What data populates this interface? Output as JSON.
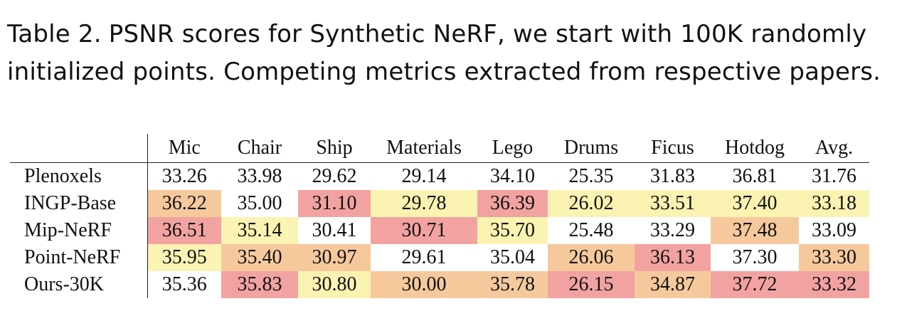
{
  "caption": {
    "label": "Table 2.",
    "text": "PSNR scores for Synthetic NeRF, we start with 100K randomly initialized points. Competing metrics extracted from respective papers."
  },
  "table": {
    "columns": [
      "Mic",
      "Chair",
      "Ship",
      "Materials",
      "Lego",
      "Drums",
      "Ficus",
      "Hotdog",
      "Avg."
    ],
    "rows": [
      {
        "method": "Plenoxels",
        "cells": [
          {
            "value": "33.26",
            "rank": 0
          },
          {
            "value": "33.98",
            "rank": 0
          },
          {
            "value": "29.62",
            "rank": 0
          },
          {
            "value": "29.14",
            "rank": 0
          },
          {
            "value": "34.10",
            "rank": 0
          },
          {
            "value": "25.35",
            "rank": 0
          },
          {
            "value": "31.83",
            "rank": 0
          },
          {
            "value": "36.81",
            "rank": 0
          },
          {
            "value": "31.76",
            "rank": 0
          }
        ]
      },
      {
        "method": "INGP-Base",
        "cells": [
          {
            "value": "36.22",
            "rank": 2
          },
          {
            "value": "35.00",
            "rank": 0
          },
          {
            "value": "31.10",
            "rank": 1
          },
          {
            "value": "29.78",
            "rank": 3
          },
          {
            "value": "36.39",
            "rank": 1
          },
          {
            "value": "26.02",
            "rank": 3
          },
          {
            "value": "33.51",
            "rank": 3
          },
          {
            "value": "37.40",
            "rank": 3
          },
          {
            "value": "33.18",
            "rank": 3
          }
        ]
      },
      {
        "method": "Mip-NeRF",
        "cells": [
          {
            "value": "36.51",
            "rank": 1
          },
          {
            "value": "35.14",
            "rank": 3
          },
          {
            "value": "30.41",
            "rank": 0
          },
          {
            "value": "30.71",
            "rank": 1
          },
          {
            "value": "35.70",
            "rank": 3
          },
          {
            "value": "25.48",
            "rank": 0
          },
          {
            "value": "33.29",
            "rank": 0
          },
          {
            "value": "37.48",
            "rank": 2
          },
          {
            "value": "33.09",
            "rank": 0
          }
        ]
      },
      {
        "method": "Point-NeRF",
        "cells": [
          {
            "value": "35.95",
            "rank": 3
          },
          {
            "value": "35.40",
            "rank": 2
          },
          {
            "value": "30.97",
            "rank": 2
          },
          {
            "value": "29.61",
            "rank": 0
          },
          {
            "value": "35.04",
            "rank": 0
          },
          {
            "value": "26.06",
            "rank": 2
          },
          {
            "value": "36.13",
            "rank": 1
          },
          {
            "value": "37.30",
            "rank": 0
          },
          {
            "value": "33.30",
            "rank": 2
          }
        ]
      },
      {
        "method": "Ours-30K",
        "cells": [
          {
            "value": "35.36",
            "rank": 0
          },
          {
            "value": "35.83",
            "rank": 1
          },
          {
            "value": "30.80",
            "rank": 3
          },
          {
            "value": "30.00",
            "rank": 2
          },
          {
            "value": "35.78",
            "rank": 2
          },
          {
            "value": "26.15",
            "rank": 1
          },
          {
            "value": "34.87",
            "rank": 2
          },
          {
            "value": "37.72",
            "rank": 1
          },
          {
            "value": "33.32",
            "rank": 1
          }
        ]
      }
    ]
  },
  "colors": {
    "best": "#f2a3a1",
    "second": "#f6c99d",
    "third": "#fbf3b2"
  }
}
